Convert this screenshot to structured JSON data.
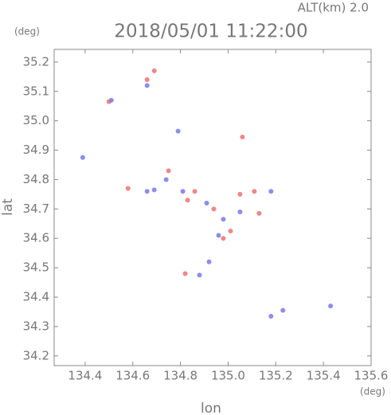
{
  "chart_data": {
    "type": "scatter",
    "title": "2018/05/01 11:22:00",
    "subtitle": "ALT(km) 2.0",
    "x_label": "lon",
    "y_label": "lat",
    "x_unit": "(deg)",
    "y_unit": "(deg)",
    "xlim": [
      134.27,
      135.6
    ],
    "ylim": [
      34.167,
      35.243
    ],
    "xticks": [
      134.4,
      134.6,
      134.8,
      {
        "value": 135.0,
        "label": "135.0"
      },
      135.2,
      135.4,
      135.6
    ],
    "yticks": [
      34.2,
      34.3,
      34.4,
      34.5,
      34.6,
      34.7,
      34.8,
      34.9,
      {
        "value": 35.0,
        "label": "35.0"
      },
      35.1,
      35.2
    ],
    "series": [
      {
        "color": "#f07070",
        "x": [
          134.5,
          134.66,
          134.69,
          135.06,
          134.75,
          134.58,
          134.83,
          134.94,
          135.05,
          135.01,
          134.98,
          134.82,
          134.86,
          135.13,
          135.11
        ],
        "values": [
          35.065,
          35.14,
          35.17,
          34.945,
          34.83,
          34.77,
          34.73,
          34.7,
          34.75,
          34.625,
          34.6,
          34.48,
          34.76,
          34.685,
          34.76
        ]
      },
      {
        "color": "#7878f0",
        "x": [
          134.51,
          134.66,
          134.39,
          134.79,
          134.74,
          134.81,
          134.91,
          134.98,
          135.05,
          134.96,
          134.92,
          134.88,
          135.18,
          135.23,
          135.18,
          135.43,
          134.66,
          134.69
        ],
        "values": [
          35.07,
          35.12,
          34.875,
          34.965,
          34.8,
          34.76,
          34.72,
          34.665,
          34.69,
          34.61,
          34.52,
          34.475,
          34.76,
          34.355,
          34.335,
          34.37,
          34.76,
          34.765
        ]
      }
    ]
  }
}
